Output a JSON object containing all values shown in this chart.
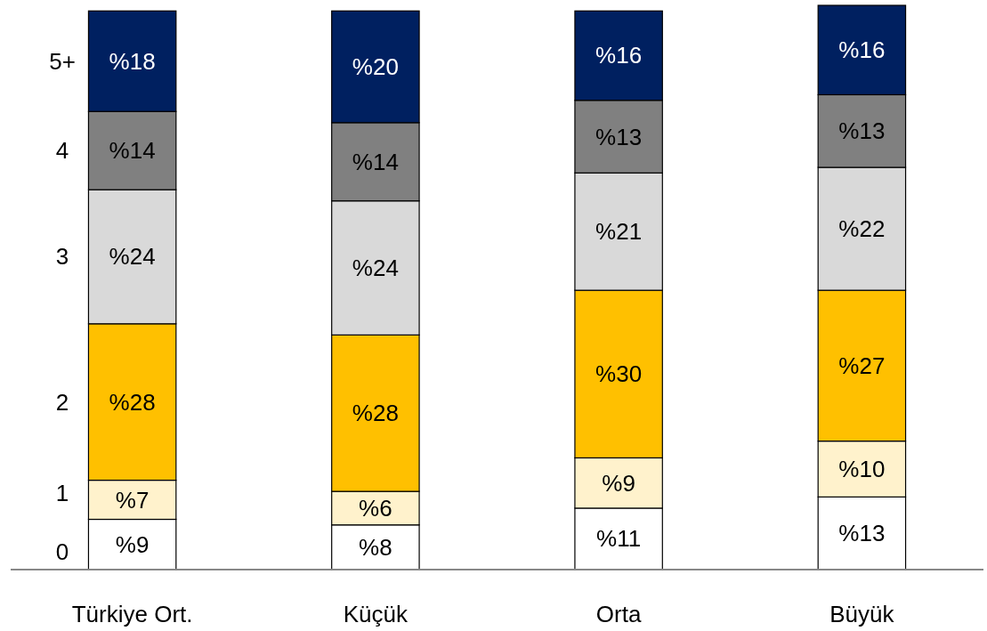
{
  "chart_data": {
    "type": "bar",
    "stacked": true,
    "categories": [
      "Türkiye Ort.",
      "Küçük",
      "Orta",
      "Büyük"
    ],
    "series": [
      {
        "name": "0",
        "color": "#ffffff",
        "values": [
          9,
          8,
          11,
          13
        ],
        "value_labels": [
          "%9",
          "%8",
          "%11",
          "%13"
        ]
      },
      {
        "name": "1",
        "color": "#fff2cc",
        "values": [
          7,
          6,
          9,
          10
        ],
        "value_labels": [
          "%7",
          "%6",
          "%9",
          "%10"
        ]
      },
      {
        "name": "2",
        "color": "#ffc000",
        "values": [
          28,
          28,
          30,
          27
        ],
        "value_labels": [
          "%28",
          "%28",
          "%30",
          "%27"
        ]
      },
      {
        "name": "3",
        "color": "#d9d9d9",
        "values": [
          24,
          24,
          21,
          22
        ],
        "value_labels": [
          "%24",
          "%24",
          "%21",
          "%22"
        ]
      },
      {
        "name": "4",
        "color": "#808080",
        "values": [
          14,
          14,
          13,
          13
        ],
        "value_labels": [
          "%14",
          "%14",
          "%13",
          "%13"
        ]
      },
      {
        "name": "5+",
        "color": "#002060",
        "values": [
          18,
          20,
          16,
          16
        ],
        "value_labels": [
          "%18",
          "%20",
          "%16",
          "%16"
        ]
      }
    ]
  }
}
